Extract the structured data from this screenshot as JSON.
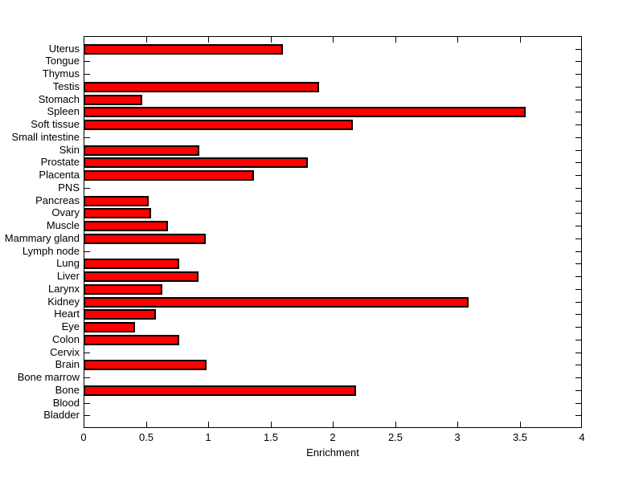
{
  "chart_data": {
    "type": "bar",
    "orientation": "horizontal",
    "title": "",
    "xlabel": "Enrichment",
    "ylabel": "",
    "xlim": [
      0,
      4
    ],
    "xticks": [
      0,
      0.5,
      1,
      1.5,
      2,
      2.5,
      3,
      3.5,
      4
    ],
    "xtick_labels": [
      "0",
      "0.5",
      "1",
      "1.5",
      "2",
      "2.5",
      "3",
      "3.5",
      "4"
    ],
    "grid": false,
    "legend": false,
    "categories_top_to_bottom": [
      "Uterus",
      "Tongue",
      "Thymus",
      "Testis",
      "Stomach",
      "Spleen",
      "Soft tissue",
      "Small intestine",
      "Skin",
      "Prostate",
      "Placenta",
      "PNS",
      "Pancreas",
      "Ovary",
      "Muscle",
      "Mammary gland",
      "Lymph node",
      "Lung",
      "Liver",
      "Larynx",
      "Kidney",
      "Heart",
      "Eye",
      "Colon",
      "Cervix",
      "Brain",
      "Bone marrow",
      "Bone",
      "Blood",
      "Bladder"
    ],
    "values": [
      1.6,
      0,
      0,
      1.89,
      0.47,
      3.55,
      2.16,
      0,
      0.93,
      1.8,
      1.37,
      0,
      0.52,
      0.54,
      0.68,
      0.98,
      0,
      0.77,
      0.92,
      0.63,
      3.09,
      0.58,
      0.41,
      0.77,
      0,
      0.99,
      0,
      2.19,
      0,
      0
    ],
    "bar_color": "#ff0000",
    "bar_edge_color": "#000000",
    "axis_color": "#000000",
    "background_color": "#ffffff"
  }
}
